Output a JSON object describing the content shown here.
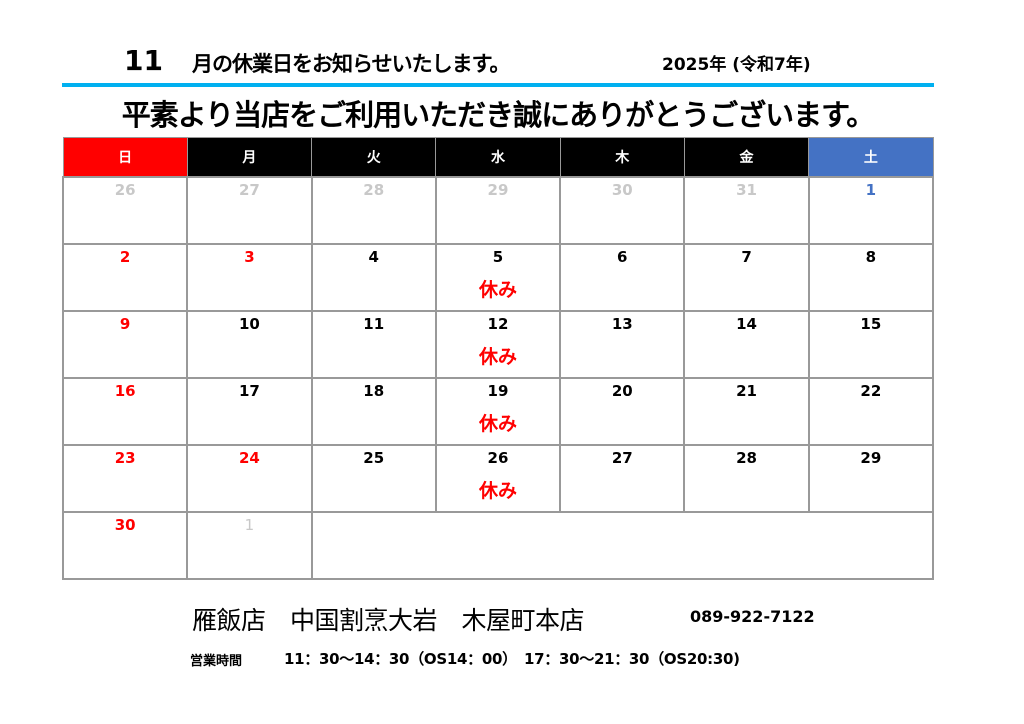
{
  "header": {
    "month": "11",
    "title": "月の休業日をお知らせいたします。",
    "year": "2025年 (令和7年)",
    "rule_color": "#00b0f0"
  },
  "greeting": "平素より当店をご利用いただき誠にありがとうございます。",
  "calendar": {
    "weekdays": [
      "日",
      "月",
      "火",
      "水",
      "木",
      "金",
      "土"
    ],
    "colors": {
      "sunday_header": "#ff0000",
      "saturday_header": "#4472c4",
      "weekday_header": "#000000",
      "closed_text": "#ff0000",
      "other_month": "#c8c8c8"
    },
    "closed_label": "休み",
    "weeks": [
      [
        {
          "d": "26",
          "t": "other"
        },
        {
          "d": "27",
          "t": "other"
        },
        {
          "d": "28",
          "t": "other"
        },
        {
          "d": "29",
          "t": "other"
        },
        {
          "d": "30",
          "t": "other"
        },
        {
          "d": "31",
          "t": "other"
        },
        {
          "d": "1",
          "t": "blue"
        }
      ],
      [
        {
          "d": "2",
          "t": "red"
        },
        {
          "d": "3",
          "t": "red"
        },
        {
          "d": "4",
          "t": ""
        },
        {
          "d": "5",
          "t": "",
          "closed": "休み"
        },
        {
          "d": "6",
          "t": ""
        },
        {
          "d": "7",
          "t": ""
        },
        {
          "d": "8",
          "t": ""
        }
      ],
      [
        {
          "d": "9",
          "t": "red"
        },
        {
          "d": "10",
          "t": ""
        },
        {
          "d": "11",
          "t": ""
        },
        {
          "d": "12",
          "t": "",
          "closed": "休み"
        },
        {
          "d": "13",
          "t": ""
        },
        {
          "d": "14",
          "t": ""
        },
        {
          "d": "15",
          "t": ""
        }
      ],
      [
        {
          "d": "16",
          "t": "red"
        },
        {
          "d": "17",
          "t": ""
        },
        {
          "d": "18",
          "t": ""
        },
        {
          "d": "19",
          "t": "",
          "closed": "休み"
        },
        {
          "d": "20",
          "t": ""
        },
        {
          "d": "21",
          "t": ""
        },
        {
          "d": "22",
          "t": ""
        }
      ],
      [
        {
          "d": "23",
          "t": "red"
        },
        {
          "d": "24",
          "t": "red"
        },
        {
          "d": "25",
          "t": ""
        },
        {
          "d": "26",
          "t": "",
          "closed": "休み"
        },
        {
          "d": "27",
          "t": ""
        },
        {
          "d": "28",
          "t": ""
        },
        {
          "d": "29",
          "t": ""
        }
      ],
      [
        {
          "d": "30",
          "t": "red"
        },
        {
          "d": "1",
          "t": "other light"
        }
      ]
    ]
  },
  "footer": {
    "store_name": "雁飯店　中国割烹大岩　木屋町本店",
    "phone": "089-922-7122",
    "hours_label": "営業時間",
    "hours": "11：30～14：30（OS14：00）　17：30～21：30（OS20:30)"
  }
}
